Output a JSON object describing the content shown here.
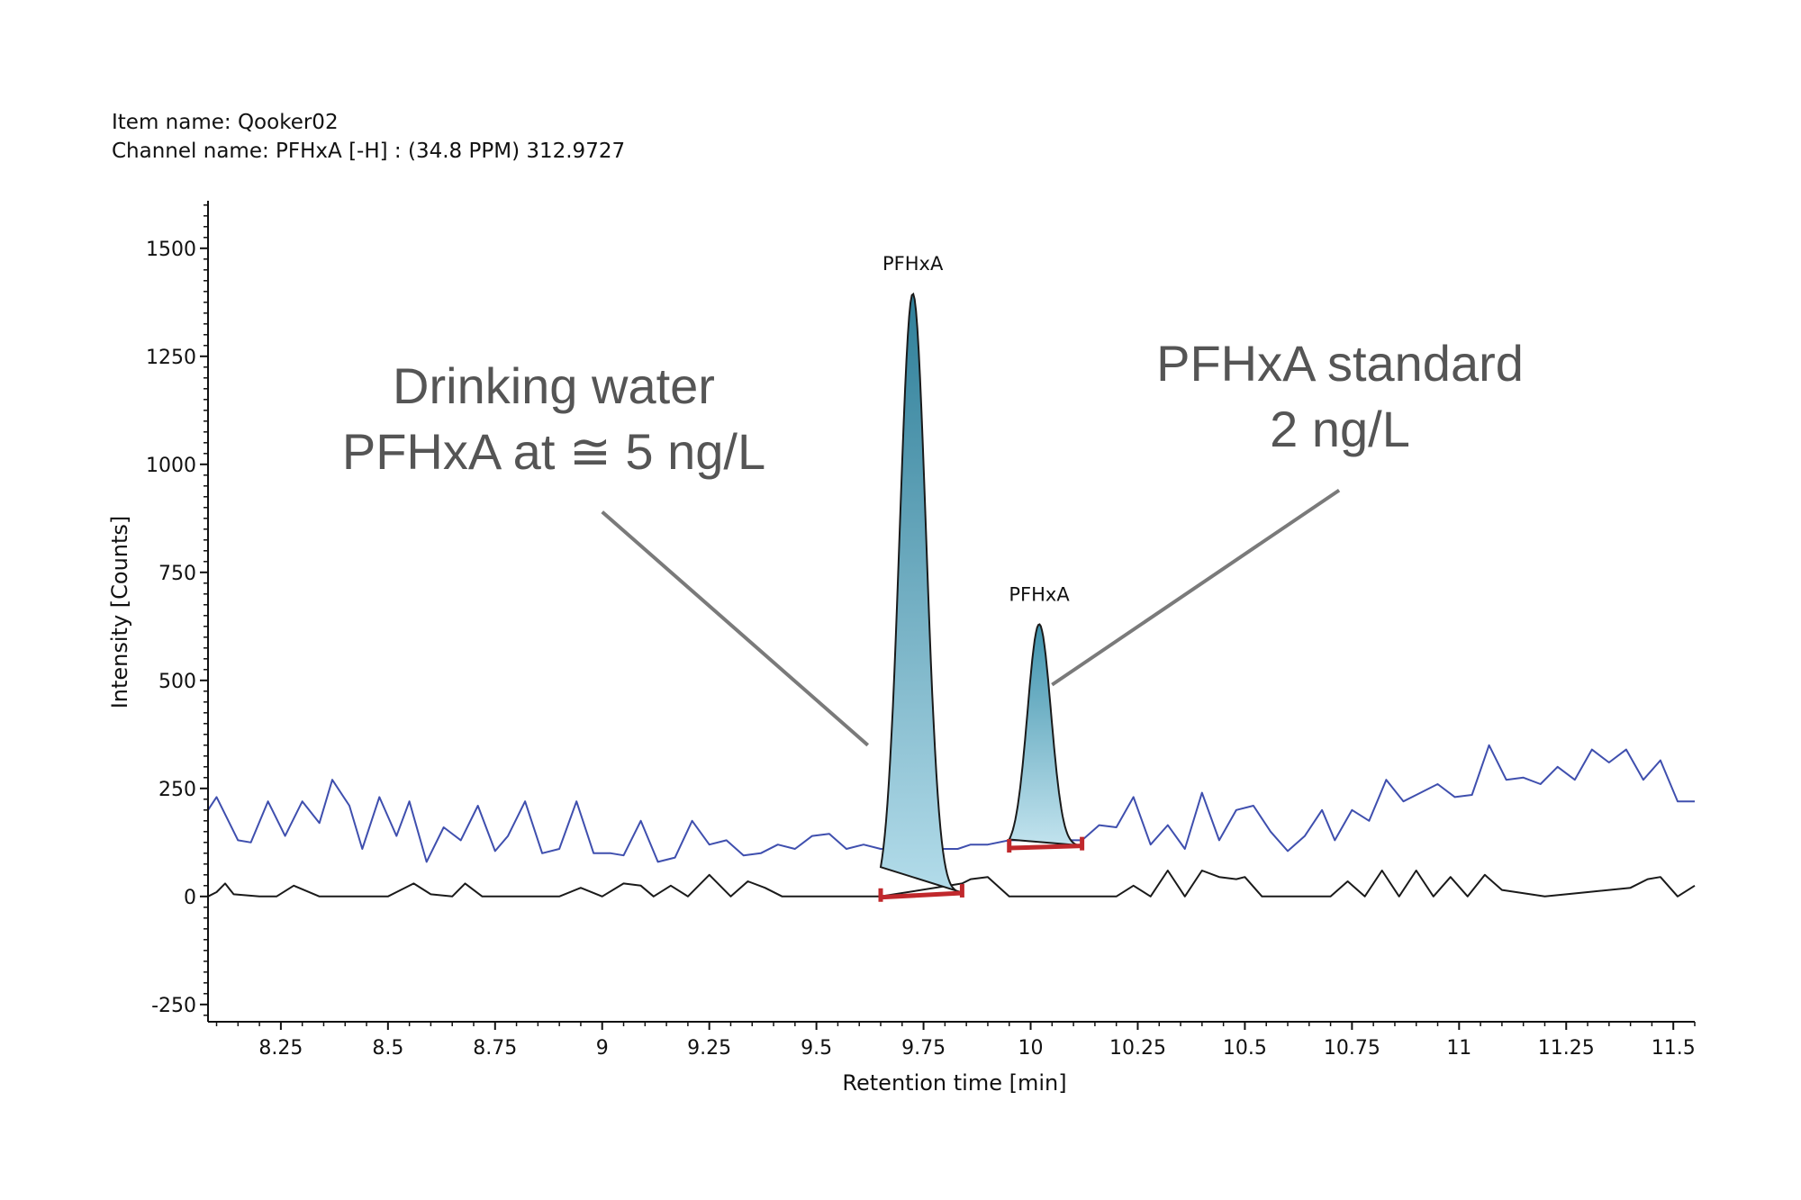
{
  "header": {
    "item_name": "Item name: Qooker02",
    "channel_name": "Channel name: PFHxA [-H] : (34.8 PPM) 312.9727"
  },
  "chart_data": {
    "type": "line",
    "xlabel": "Retention time [min]",
    "ylabel": "Intensity [Counts]",
    "xlim": [
      8.08,
      11.55
    ],
    "ylim": [
      -290,
      1610
    ],
    "xticks": [
      8.25,
      8.5,
      8.75,
      9,
      9.25,
      9.5,
      9.75,
      10,
      10.25,
      10.5,
      10.75,
      11,
      11.25,
      11.5
    ],
    "xtick_labels": [
      "8.25",
      "8.5",
      "8.75",
      "9",
      "9.25",
      "9.5",
      "9.75",
      "10",
      "10.25",
      "10.5",
      "10.75",
      "11",
      "11.25",
      "11.5"
    ],
    "yticks": [
      -250,
      0,
      250,
      500,
      750,
      1000,
      1250,
      1500
    ],
    "ytick_labels": [
      "-250",
      "0",
      "250",
      "500",
      "750",
      "1000",
      "1250",
      "1500"
    ],
    "series": [
      {
        "color": "#3f4fae",
        "x": [
          8.08,
          8.1,
          8.15,
          8.18,
          8.22,
          8.26,
          8.3,
          8.34,
          8.37,
          8.41,
          8.44,
          8.48,
          8.52,
          8.55,
          8.59,
          8.63,
          8.67,
          8.71,
          8.75,
          8.78,
          8.82,
          8.86,
          8.9,
          8.94,
          8.98,
          9.02,
          9.05,
          9.09,
          9.13,
          9.17,
          9.21,
          9.25,
          9.29,
          9.33,
          9.37,
          9.41,
          9.45,
          9.49,
          9.53,
          9.57,
          9.61,
          9.65,
          9.83,
          9.86,
          9.9,
          9.95,
          10.12,
          10.16,
          10.2,
          10.24,
          10.28,
          10.32,
          10.36,
          10.4,
          10.44,
          10.48,
          10.52,
          10.56,
          10.6,
          10.64,
          10.68,
          10.71,
          10.75,
          10.79,
          10.83,
          10.87,
          10.91,
          10.95,
          10.99,
          11.03,
          11.07,
          11.11,
          11.15,
          11.19,
          11.23,
          11.27,
          11.31,
          11.35,
          11.39,
          11.43,
          11.47,
          11.51,
          11.55
        ],
        "y": [
          200,
          230,
          130,
          125,
          220,
          140,
          220,
          170,
          270,
          210,
          110,
          230,
          140,
          220,
          80,
          160,
          130,
          210,
          105,
          140,
          220,
          100,
          110,
          220,
          100,
          100,
          95,
          175,
          80,
          90,
          175,
          120,
          130,
          95,
          100,
          120,
          110,
          140,
          145,
          110,
          120,
          110,
          110,
          120,
          120,
          130,
          130,
          165,
          160,
          230,
          120,
          165,
          110,
          240,
          130,
          200,
          210,
          150,
          105,
          140,
          200,
          130,
          200,
          175,
          270,
          220,
          240,
          260,
          230,
          235,
          350,
          270,
          275,
          260,
          300,
          270,
          340,
          310,
          340,
          270,
          315,
          220,
          220
        ]
      },
      {
        "color": "#1a1a1a",
        "x": [
          8.08,
          8.1,
          8.12,
          8.14,
          8.2,
          8.24,
          8.28,
          8.34,
          8.4,
          8.5,
          8.52,
          8.56,
          8.6,
          8.65,
          8.68,
          8.72,
          8.76,
          8.8,
          8.9,
          8.95,
          9.0,
          9.05,
          9.09,
          9.12,
          9.16,
          9.2,
          9.25,
          9.3,
          9.34,
          9.38,
          9.42,
          9.46,
          9.55,
          9.6,
          9.65,
          9.84,
          9.86,
          9.9,
          9.95,
          10.2,
          10.24,
          10.28,
          10.32,
          10.36,
          10.4,
          10.44,
          10.48,
          10.5,
          10.54,
          10.58,
          10.62,
          10.7,
          10.74,
          10.78,
          10.82,
          10.86,
          10.9,
          10.94,
          10.98,
          11.02,
          11.06,
          11.1,
          11.2,
          11.3,
          11.4,
          11.44,
          11.47,
          11.51,
          11.55
        ],
        "y": [
          0,
          10,
          30,
          5,
          0,
          0,
          25,
          0,
          0,
          0,
          10,
          30,
          5,
          0,
          30,
          0,
          0,
          0,
          0,
          20,
          0,
          30,
          25,
          0,
          25,
          0,
          50,
          0,
          35,
          20,
          0,
          0,
          0,
          0,
          0,
          30,
          40,
          45,
          0,
          0,
          25,
          0,
          60,
          0,
          60,
          45,
          40,
          45,
          0,
          0,
          0,
          0,
          35,
          0,
          60,
          0,
          60,
          0,
          45,
          0,
          50,
          15,
          0,
          10,
          20,
          40,
          45,
          0,
          25
        ]
      }
    ],
    "peaks": [
      {
        "label": "PFHxA",
        "apex_x": 9.725,
        "apex_y": 1395,
        "start": [
          9.65,
          -2
        ],
        "end": [
          9.84,
          8
        ],
        "fill": "#5aa3bd"
      },
      {
        "label": "PFHxA",
        "apex_x": 10.02,
        "apex_y": 630,
        "start": [
          9.95,
          112
        ],
        "end": [
          10.12,
          117
        ],
        "fill": "#66b2c8"
      }
    ],
    "annotations": [
      {
        "lines": [
          "Drinking water",
          "PFHxA at ≅ 5 ng/L"
        ],
        "arrow_from": [
          9.0,
          890
        ],
        "arrow_to": [
          9.62,
          350
        ]
      },
      {
        "lines": [
          "PFHxA standard",
          "2 ng/L"
        ],
        "arrow_from": [
          10.72,
          940
        ],
        "arrow_to": [
          10.05,
          490
        ]
      }
    ]
  }
}
